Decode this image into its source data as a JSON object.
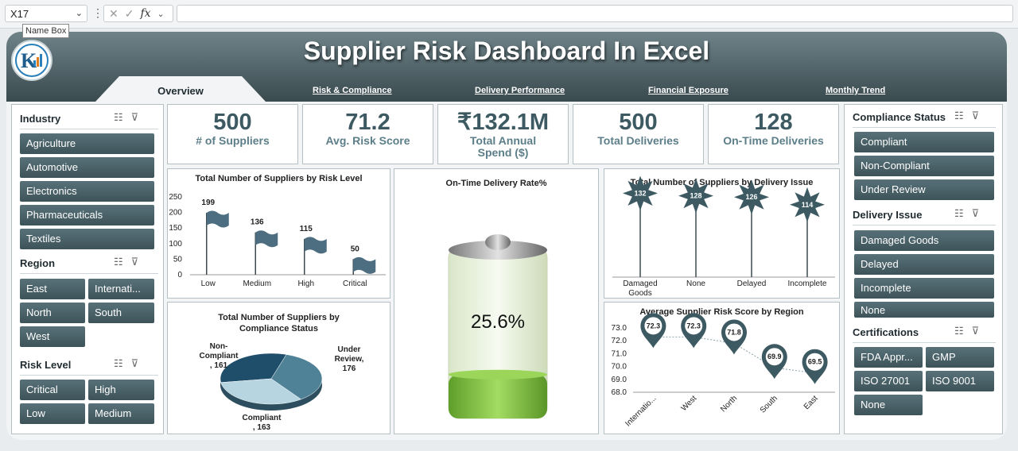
{
  "excel": {
    "name_box": "X17",
    "name_box_tooltip": "Name Box",
    "fx_label": "fx"
  },
  "title": "Supplier Risk Dashboard In Excel",
  "tabs": [
    "Overview",
    "Risk & Compliance",
    "Delivery Performance",
    "Financial Exposure",
    "Monthly Trend"
  ],
  "slicers_left": {
    "industry": {
      "title": "Industry",
      "items": [
        "Agriculture",
        "Automotive",
        "Electronics",
        "Pharmaceuticals",
        "Textiles"
      ]
    },
    "region": {
      "title": "Region",
      "items": [
        "East",
        "Internati...",
        "North",
        "South",
        "West"
      ]
    },
    "risk_level": {
      "title": "Risk Level",
      "items": [
        "Critical",
        "High",
        "Low",
        "Medium"
      ]
    }
  },
  "slicers_right": {
    "compliance_status": {
      "title": "Compliance Status",
      "items": [
        "Compliant",
        "Non-Compliant",
        "Under Review"
      ]
    },
    "delivery_issue": {
      "title": "Delivery Issue",
      "items": [
        "Damaged Goods",
        "Delayed",
        "Incomplete",
        "None"
      ]
    },
    "certifications": {
      "title": "Certifications",
      "items": [
        "FDA Appr...",
        "GMP",
        "ISO 27001",
        "ISO 9001",
        "None"
      ]
    }
  },
  "kpis": [
    {
      "value": "500",
      "label": "# of Suppliers"
    },
    {
      "value": "71.2",
      "label": "Avg. Risk Score"
    },
    {
      "value": "₹132.1M",
      "label": "Total Annual Spend ($)"
    },
    {
      "value": "500",
      "label": "Total Deliveries"
    },
    {
      "value": "128",
      "label": "On-Time Deliveries"
    }
  ],
  "colors": {
    "accent": "#3d5359",
    "marker": "#3d5a63",
    "battery_green": "#7ac143"
  },
  "chart_data": [
    {
      "type": "bar",
      "title": "Total Number of Suppliers by Risk Level",
      "categories": [
        "Low",
        "Medium",
        "High",
        "Critical"
      ],
      "values": [
        199,
        136,
        115,
        50
      ],
      "ylim": [
        0,
        250
      ],
      "yticks": [
        "250",
        "200",
        "150",
        "100",
        "50",
        "0"
      ],
      "marker": "flag"
    },
    {
      "type": "pie",
      "title": "Total Number of Suppliers by Compliance Status",
      "categories": [
        "Non-Compliant",
        "Under Review",
        "Compliant"
      ],
      "values": [
        161,
        176,
        163
      ],
      "data_labels": [
        "Non-\nCompliant\n, 161",
        "Under\nReview,\n176",
        "Compliant\n, 163"
      ]
    },
    {
      "type": "gauge",
      "title": "On-Time Delivery Rate%",
      "value": 25.6,
      "label": "25.6%"
    },
    {
      "type": "bar",
      "title": "Total Number of Suppliers by Delivery Issue",
      "categories": [
        "Damaged Goods",
        "None",
        "Delayed",
        "Incomplete"
      ],
      "values": [
        132,
        128,
        126,
        114
      ],
      "marker": "star"
    },
    {
      "type": "line",
      "title": "Average Supplier Risk Score by Region",
      "categories": [
        "Internatio...",
        "West",
        "North",
        "South",
        "East"
      ],
      "values": [
        72.3,
        72.3,
        71.8,
        69.9,
        69.5
      ],
      "ylim": [
        68.0,
        73.0
      ],
      "yticks": [
        "73.0",
        "72.0",
        "71.0",
        "70.0",
        "69.0",
        "68.0"
      ]
    }
  ]
}
